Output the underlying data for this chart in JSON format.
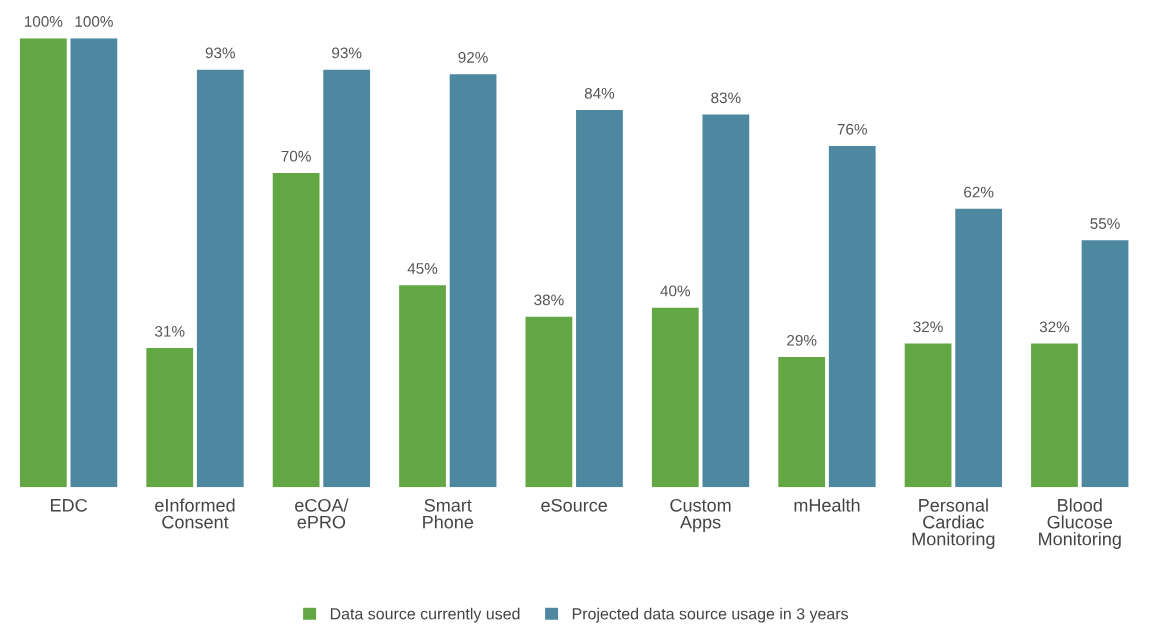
{
  "chart_data": {
    "type": "bar",
    "categories": [
      "EDC",
      "eInformed\nConsent",
      "eCOA/\nePRO",
      "Smart\nPhone",
      "eSource",
      "Custom\nApps",
      "mHealth",
      "Personal\nCardiac\nMonitoring",
      "Blood\nGlucose\nMonitoring"
    ],
    "series": [
      {
        "name": "Data source currently used",
        "color": "#62a744",
        "values": [
          100,
          31,
          70,
          45,
          38,
          40,
          29,
          32,
          32
        ],
        "value_labels": [
          "100%",
          "31%",
          "70%",
          "45%",
          "38%",
          "40%",
          "29%",
          "32%",
          "32%"
        ]
      },
      {
        "name": "Projected data source usage in 3 years",
        "color": "#4d88a0",
        "values": [
          100,
          93,
          93,
          92,
          84,
          83,
          76,
          62,
          55
        ],
        "value_labels": [
          "100%",
          "93%",
          "93%",
          "92%",
          "84%",
          "83%",
          "76%",
          "62%",
          "55%"
        ]
      }
    ],
    "legend": "bottom"
  }
}
